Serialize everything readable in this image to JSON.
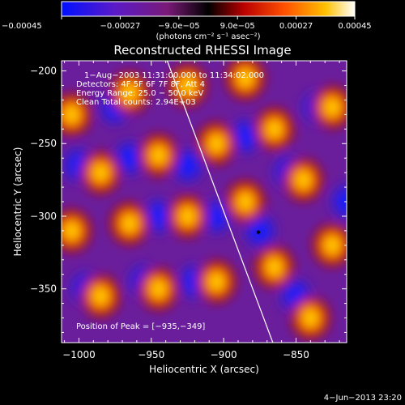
{
  "chart_data": {
    "type": "heatmap",
    "title": "Reconstructed RHESSI Image",
    "xlabel": "Heliocentric X (arcsec)",
    "ylabel": "Heliocentric Y (arcsec)",
    "xlim": [
      -1012,
      -815
    ],
    "ylim": [
      -387,
      -193
    ],
    "x_ticks": [
      -1000,
      -950,
      -900,
      -850
    ],
    "x_tick_labels": [
      "−1000",
      "−950",
      "−900",
      "−850"
    ],
    "y_ticks": [
      -200,
      -250,
      -300,
      -350
    ],
    "y_tick_labels": [
      "−200",
      "−250",
      "−300",
      "−350"
    ],
    "colorbar": {
      "range": [
        -0.00045,
        0.00045
      ],
      "ticks": [
        -0.00045,
        -0.00027,
        -9e-05,
        9e-05,
        0.00027,
        0.00045
      ],
      "tick_labels": [
        "−0.00045",
        "−0.00027",
        "−9.0e−05",
        "9.0e−05",
        "0.00027",
        "0.00045"
      ],
      "units": "(photons cm⁻² s⁻¹ asec⁻²)",
      "colors": [
        "#0010ff",
        "#5a1ac8",
        "#7a1a78",
        "#000000",
        "#b80000",
        "#ff5000",
        "#ffc000",
        "#ffffff"
      ]
    },
    "annotations": [
      "1−Aug−2003 11:31:00.000 to 11:34:02.000",
      "Detectors: 4F 5F 6F 7F 8F, Att 4",
      "Energy Range: 25.0 − 50.0 keV",
      "Clean     Total counts: 2.94E+03"
    ],
    "peak_label": "Position of Peak = [−935,−349]",
    "peak_position": [
      -935,
      -349
    ],
    "limb_line": [
      [
        -939,
        -193
      ],
      [
        -866,
        -387
      ]
    ],
    "marked_point": [
      -876,
      -311
    ],
    "maxima": [
      [
        -1005,
        -230
      ],
      [
        -1005,
        -310
      ],
      [
        -985,
        -270
      ],
      [
        -985,
        -355
      ],
      [
        -965,
        -215
      ],
      [
        -965,
        -305
      ],
      [
        -945,
        -258
      ],
      [
        -945,
        -350
      ],
      [
        -925,
        -210
      ],
      [
        -925,
        -300
      ],
      [
        -905,
        -250
      ],
      [
        -905,
        -345
      ],
      [
        -885,
        -205
      ],
      [
        -885,
        -290
      ],
      [
        -865,
        -240
      ],
      [
        -865,
        -335
      ],
      [
        -845,
        -275
      ],
      [
        -840,
        -370
      ],
      [
        -825,
        -225
      ],
      [
        -825,
        -320
      ]
    ],
    "minima": [
      [
        -1000,
        -265
      ],
      [
        -995,
        -350
      ],
      [
        -975,
        -225
      ],
      [
        -965,
        -260
      ],
      [
        -955,
        -345
      ],
      [
        -945,
        -300
      ],
      [
        -925,
        -265
      ],
      [
        -920,
        -345
      ],
      [
        -905,
        -300
      ],
      [
        -885,
        -245
      ],
      [
        -875,
        -310
      ],
      [
        -855,
        -270
      ],
      [
        -850,
        -355
      ],
      [
        -835,
        -225
      ],
      [
        -815,
        -290
      ]
    ]
  },
  "footer": {
    "timestamp": "4−Jun−2013 23:20"
  }
}
